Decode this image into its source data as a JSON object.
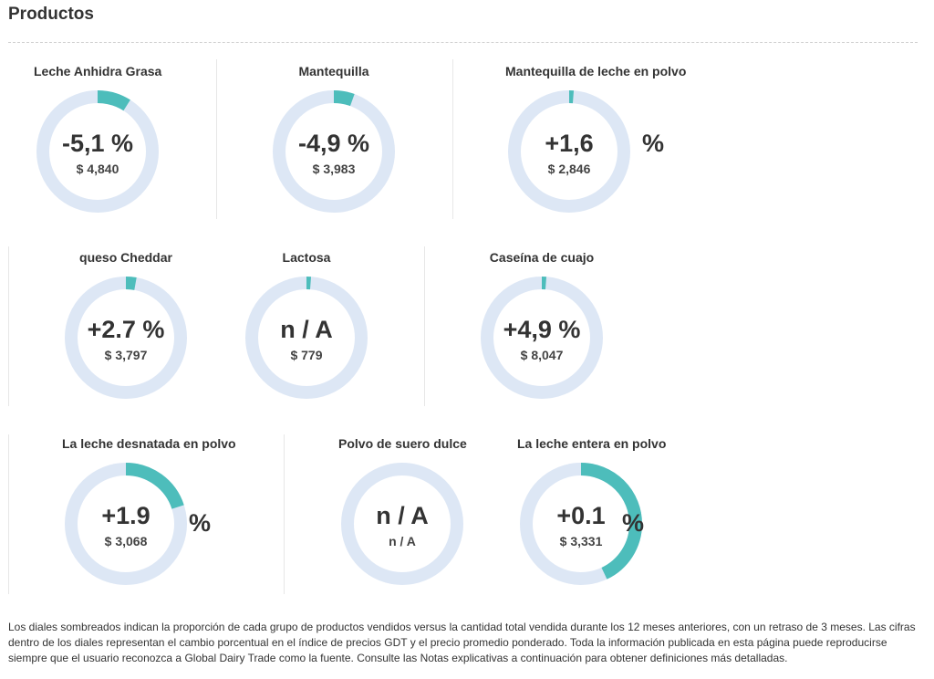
{
  "page": {
    "title": "Productos"
  },
  "colors": {
    "track": "#dde7f5",
    "fill": "#4dbdbb"
  },
  "products": [
    {
      "name": "Leche Anhidra Grasa",
      "change": "-5,1 %",
      "price": "$ 4,840",
      "suffix": "",
      "share": 0.09
    },
    {
      "name": "Mantequilla",
      "change": "-4,9 %",
      "price": "$ 3,983",
      "suffix": "",
      "share": 0.055
    },
    {
      "name": "Mantequilla de leche en polvo",
      "change": "+1,6",
      "price": "$ 2,846",
      "suffix": "%",
      "share": 0.012
    },
    {
      "name": "queso Cheddar",
      "change": "+2.7 %",
      "price": "$ 3,797",
      "suffix": "",
      "share": 0.028
    },
    {
      "name": "Lactosa",
      "change": "n / A",
      "price": "$ 779",
      "suffix": "",
      "share": 0.012
    },
    {
      "name": "Caseína de cuajo",
      "change": "+4,9 %",
      "price": "$ 8,047",
      "suffix": "",
      "share": 0.012
    },
    {
      "name": "La leche desnatada en polvo",
      "change": "+1.9",
      "price": "$ 3,068",
      "suffix": "%",
      "share": 0.2
    },
    {
      "name": "Polvo de suero dulce",
      "change": "n / A",
      "price": "n / A",
      "suffix": "",
      "share": 0
    },
    {
      "name": "La leche entera en polvo",
      "change": "+0.1",
      "price": "$ 3,331",
      "suffix": "%",
      "share": 0.43
    }
  ],
  "footnote": "Los diales sombreados indican la proporción de cada grupo de productos vendidos versus la cantidad total vendida durante los 12 meses anteriores, con un retraso de 3 meses. Las cifras dentro de los diales representan el cambio porcentual en el índice de precios GDT y el precio promedio ponderado. Toda la información publicada en esta página puede reproducirse siempre que el usuario reconozca a Global Dairy Trade como la fuente. Consulte las Notas explicativas a continuación para obtener definiciones más detalladas."
}
